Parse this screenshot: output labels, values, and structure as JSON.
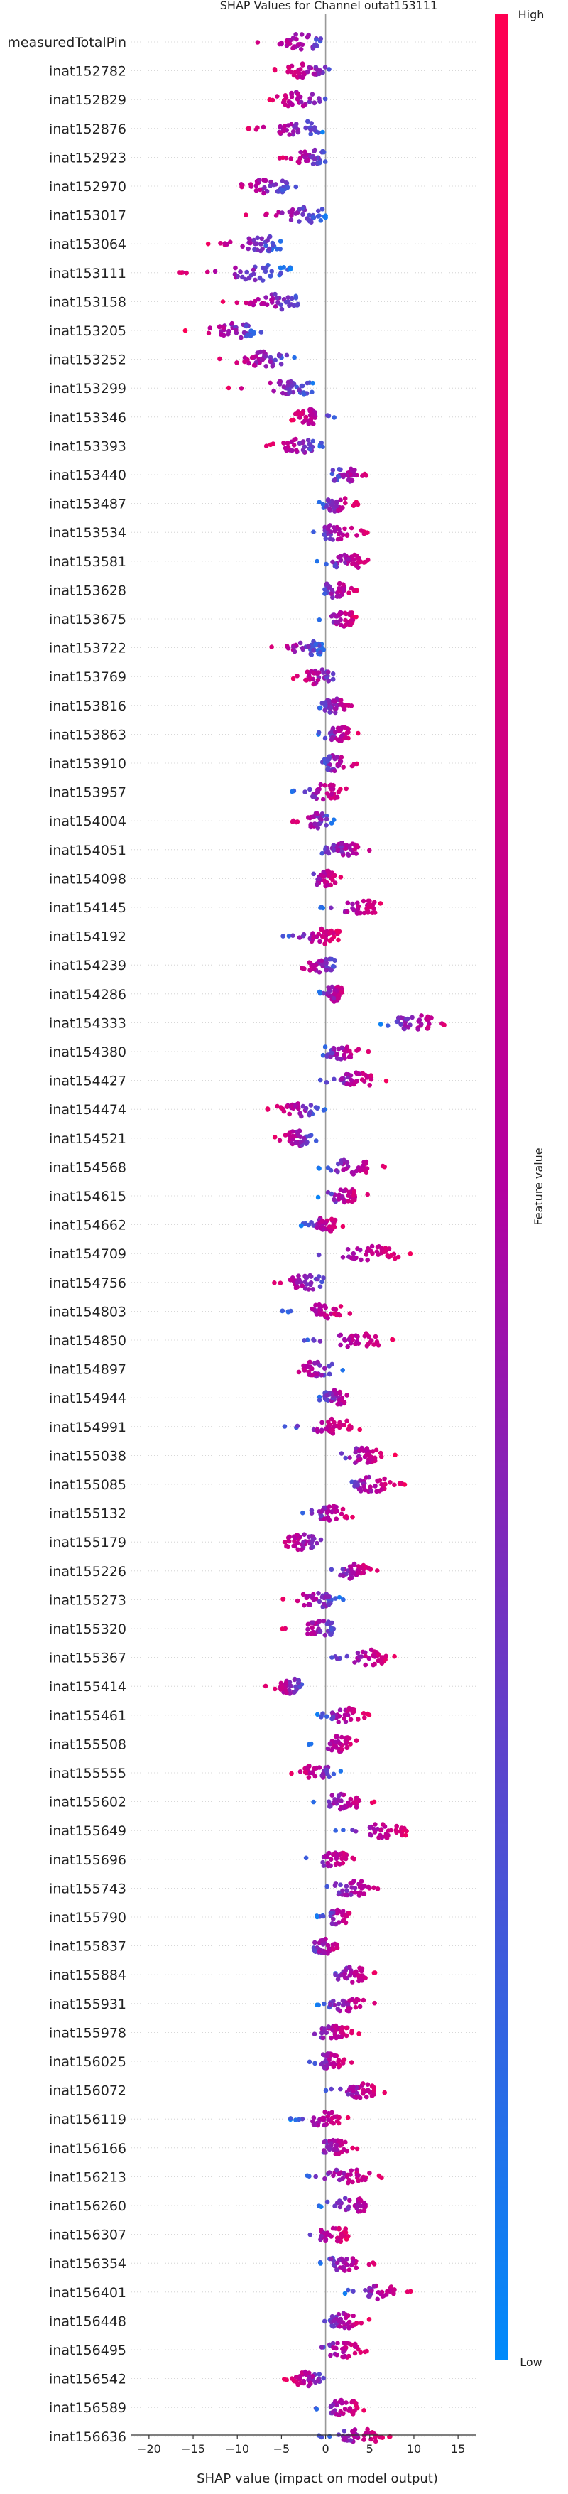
{
  "chart_data": {
    "type": "scatter",
    "title": "SHAP Values for Channel outat153111",
    "xlabel": "SHAP value (impact on model output)",
    "xlim": [
      -22,
      17
    ],
    "x_ticks": [
      -20,
      -15,
      -10,
      -5,
      0,
      5,
      10,
      15
    ],
    "colorbar": {
      "label": "Feature value",
      "high": "High",
      "low": "Low",
      "high_color": "#ff0052",
      "low_color": "#008bfb"
    },
    "features": [
      {
        "name": "measuredTotalPin",
        "lo": -10,
        "hi": 2,
        "center": -3
      },
      {
        "name": "inat152782",
        "lo": -6,
        "hi": 2,
        "center": -2.5
      },
      {
        "name": "inat152829",
        "lo": -7,
        "hi": 1,
        "center": -3
      },
      {
        "name": "inat152876",
        "lo": -10,
        "hi": 0,
        "center": -3
      },
      {
        "name": "inat152923",
        "lo": -6,
        "hi": 1,
        "center": -1.5
      },
      {
        "name": "inat152970",
        "lo": -12,
        "hi": -3,
        "center": -6
      },
      {
        "name": "inat153017",
        "lo": -10,
        "hi": 0,
        "center": -2
      },
      {
        "name": "inat153064",
        "lo": -14,
        "hi": -5,
        "center": -7
      },
      {
        "name": "inat153111",
        "lo": -19,
        "hi": -4,
        "center": -7
      },
      {
        "name": "inat153158",
        "lo": -12,
        "hi": -2,
        "center": -5
      },
      {
        "name": "inat153205",
        "lo": -16,
        "hi": -7,
        "center": -10
      },
      {
        "name": "inat153252",
        "lo": -13,
        "hi": -3,
        "center": -7
      },
      {
        "name": "inat153299",
        "lo": -12,
        "hi": -1,
        "center": -4
      },
      {
        "name": "inat153346",
        "lo": -4,
        "hi": 1,
        "center": -2
      },
      {
        "name": "inat153393",
        "lo": -7,
        "hi": 0,
        "center": -3
      },
      {
        "name": "inat153440",
        "lo": 0,
        "hi": 6,
        "center": 2
      },
      {
        "name": "inat153487",
        "lo": -1,
        "hi": 4,
        "center": 1
      },
      {
        "name": "inat153534",
        "lo": -2,
        "hi": 5,
        "center": 1
      },
      {
        "name": "inat153581",
        "lo": -1,
        "hi": 6,
        "center": 2.5
      },
      {
        "name": "inat153628",
        "lo": -1,
        "hi": 4,
        "center": 1
      },
      {
        "name": "inat153675",
        "lo": -1,
        "hi": 4,
        "center": 2
      },
      {
        "name": "inat153722",
        "lo": -8,
        "hi": 0,
        "center": -2
      },
      {
        "name": "inat153769",
        "lo": -4,
        "hi": 2,
        "center": -1
      },
      {
        "name": "inat153816",
        "lo": -1,
        "hi": 4,
        "center": 1
      },
      {
        "name": "inat153863",
        "lo": -1,
        "hi": 4,
        "center": 1.5
      },
      {
        "name": "inat153910",
        "lo": -1,
        "hi": 4,
        "center": 1
      },
      {
        "name": "inat153957",
        "lo": -4,
        "hi": 3,
        "center": 0
      },
      {
        "name": "inat154004",
        "lo": -4,
        "hi": 1,
        "center": -1
      },
      {
        "name": "inat154051",
        "lo": -2,
        "hi": 7,
        "center": 2
      },
      {
        "name": "inat154098",
        "lo": -3,
        "hi": 2,
        "center": 0
      },
      {
        "name": "inat154145",
        "lo": -1,
        "hi": 7,
        "center": 4
      },
      {
        "name": "inat154192",
        "lo": -5,
        "hi": 2,
        "center": 0
      },
      {
        "name": "inat154239",
        "lo": -4,
        "hi": 2,
        "center": -0.5
      },
      {
        "name": "inat154286",
        "lo": -1,
        "hi": 3,
        "center": 1
      },
      {
        "name": "inat154333",
        "lo": 6,
        "hi": 15,
        "center": 10
      },
      {
        "name": "inat154380",
        "lo": -1,
        "hi": 5,
        "center": 1.5
      },
      {
        "name": "inat154427",
        "lo": -1,
        "hi": 7,
        "center": 3.5
      },
      {
        "name": "inat154474",
        "lo": -7,
        "hi": 0,
        "center": -3
      },
      {
        "name": "inat154521",
        "lo": -6,
        "hi": -1,
        "center": -3
      },
      {
        "name": "inat154568",
        "lo": -1,
        "hi": 7,
        "center": 3
      },
      {
        "name": "inat154615",
        "lo": -1,
        "hi": 5,
        "center": 2
      },
      {
        "name": "inat154662",
        "lo": -3,
        "hi": 2,
        "center": 0
      },
      {
        "name": "inat154709",
        "lo": -3,
        "hi": 10,
        "center": 5
      },
      {
        "name": "inat154756",
        "lo": -7,
        "hi": 1,
        "center": -2
      },
      {
        "name": "inat154803",
        "lo": -5,
        "hi": 3,
        "center": 0
      },
      {
        "name": "inat154850",
        "lo": -3,
        "hi": 8,
        "center": 4
      },
      {
        "name": "inat154897",
        "lo": -5,
        "hi": 2,
        "center": -1
      },
      {
        "name": "inat154944",
        "lo": -1,
        "hi": 4,
        "center": 1
      },
      {
        "name": "inat154991",
        "lo": -5,
        "hi": 4,
        "center": 1
      },
      {
        "name": "inat155038",
        "lo": 0,
        "hi": 8,
        "center": 4
      },
      {
        "name": "inat155085",
        "lo": 1,
        "hi": 9,
        "center": 5
      },
      {
        "name": "inat155132",
        "lo": -3,
        "hi": 4,
        "center": 1
      },
      {
        "name": "inat155179",
        "lo": -7,
        "hi": 1,
        "center": -3
      },
      {
        "name": "inat155226",
        "lo": 0,
        "hi": 6,
        "center": 3
      },
      {
        "name": "inat155273",
        "lo": -5,
        "hi": 2,
        "center": -1
      },
      {
        "name": "inat155320",
        "lo": -5,
        "hi": 2,
        "center": -0.5
      },
      {
        "name": "inat155367",
        "lo": 0,
        "hi": 8,
        "center": 5
      },
      {
        "name": "inat155414",
        "lo": -7,
        "hi": -2,
        "center": -4
      },
      {
        "name": "inat155461",
        "lo": -1,
        "hi": 5,
        "center": 2
      },
      {
        "name": "inat155508",
        "lo": -2,
        "hi": 4,
        "center": 1.5
      },
      {
        "name": "inat155555",
        "lo": -4,
        "hi": 2,
        "center": -1
      },
      {
        "name": "inat155602",
        "lo": -2,
        "hi": 6,
        "center": 2
      },
      {
        "name": "inat155649",
        "lo": 1,
        "hi": 10,
        "center": 7
      },
      {
        "name": "inat155696",
        "lo": -3,
        "hi": 4,
        "center": 1
      },
      {
        "name": "inat155743",
        "lo": -1,
        "hi": 8,
        "center": 3
      },
      {
        "name": "inat155790",
        "lo": -1,
        "hi": 4,
        "center": 1.5
      },
      {
        "name": "inat155837",
        "lo": -3,
        "hi": 3,
        "center": 0
      },
      {
        "name": "inat155884",
        "lo": 0,
        "hi": 6,
        "center": 3
      },
      {
        "name": "inat155931",
        "lo": -1,
        "hi": 6,
        "center": 2
      },
      {
        "name": "inat155978",
        "lo": -3,
        "hi": 4,
        "center": 1
      },
      {
        "name": "inat156025",
        "lo": -2,
        "hi": 3,
        "center": 0.5
      },
      {
        "name": "inat156072",
        "lo": 0,
        "hi": 7,
        "center": 4
      },
      {
        "name": "inat156119",
        "lo": -4,
        "hi": 3,
        "center": 0
      },
      {
        "name": "inat156166",
        "lo": -2,
        "hi": 4,
        "center": 1
      },
      {
        "name": "inat156213",
        "lo": -3,
        "hi": 7,
        "center": 2.5
      },
      {
        "name": "inat156260",
        "lo": -1,
        "hi": 8,
        "center": 3
      },
      {
        "name": "inat156307",
        "lo": -4,
        "hi": 3,
        "center": 1
      },
      {
        "name": "inat156354",
        "lo": -1,
        "hi": 6,
        "center": 2
      },
      {
        "name": "inat156401",
        "lo": 2,
        "hi": 10,
        "center": 6
      },
      {
        "name": "inat156448",
        "lo": -1,
        "hi": 5,
        "center": 2
      },
      {
        "name": "inat156495",
        "lo": -2,
        "hi": 5,
        "center": 2
      },
      {
        "name": "inat156542",
        "lo": -5,
        "hi": 1,
        "center": -2
      },
      {
        "name": "inat156589",
        "lo": -2,
        "hi": 5,
        "center": 2
      },
      {
        "name": "inat156636",
        "lo": -1,
        "hi": 8,
        "center": 4
      }
    ]
  }
}
